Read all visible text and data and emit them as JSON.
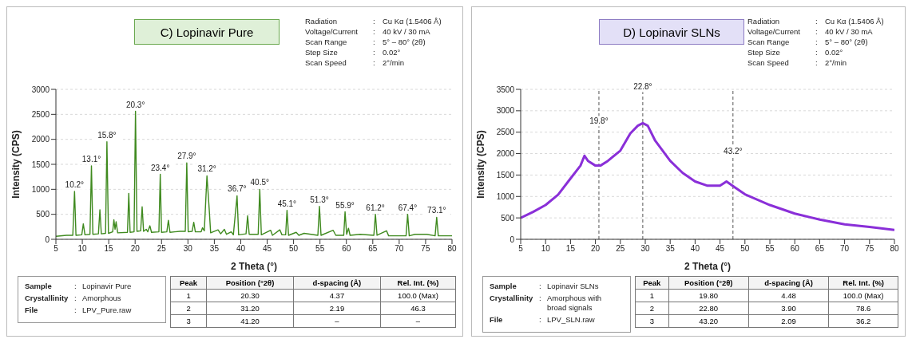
{
  "chart_data": [
    {
      "type": "line",
      "title": "C) Lopinavir Pure",
      "xlabel": "2 Theta (°)",
      "ylabel": "Intensity (CPS)",
      "color": "#3f8a1f",
      "xlim": [
        5,
        80
      ],
      "xticks": [
        5,
        10,
        15,
        20,
        25,
        30,
        35,
        40,
        45,
        50,
        55,
        60,
        65,
        70,
        75,
        80
      ],
      "ylim": [
        0,
        3000
      ],
      "yticks": [
        0,
        500,
        1000,
        1500,
        2000,
        2500,
        3000
      ],
      "grid": "y",
      "x": [
        5,
        7,
        8.2,
        8.53,
        8.8,
        9.9,
        10.19,
        10.5,
        11.45,
        11.73,
        12.0,
        13.05,
        13.33,
        13.6,
        14.4,
        14.66,
        14.95,
        15.75,
        15.98,
        16.2,
        16.4,
        16.7,
        18.55,
        18.8,
        19.05,
        19.8,
        20.07,
        20.35,
        21.05,
        21.33,
        21.6,
        22.1,
        22.4,
        22.8,
        23.1,
        24.5,
        24.76,
        25.0,
        26.0,
        26.3,
        26.6,
        27.5,
        28.5,
        29.5,
        29.78,
        30.05,
        30.8,
        31.1,
        31.4,
        32.5,
        32.76,
        33.1,
        33.6,
        34.03,
        34.3,
        35.7,
        36.2,
        36.9,
        37.3,
        38.2,
        38.6,
        39.3,
        39.6,
        41.0,
        41.3,
        41.6,
        43.3,
        43.6,
        43.9,
        45.67,
        46,
        47.4,
        47.8,
        48.5,
        48.76,
        49.05,
        50.5,
        51,
        52,
        54.6,
        54.9,
        55.2,
        57.5,
        58,
        59.5,
        59.75,
        60.05,
        60.4,
        60.7,
        62.6,
        65.2,
        65.5,
        65.8,
        67.6,
        68,
        71.3,
        71.6,
        71.9,
        73,
        75.2,
        76.8,
        77.1,
        77.4,
        80
      ],
      "values": [
        60,
        80,
        80,
        960,
        80,
        90,
        310,
        90,
        100,
        1470,
        100,
        110,
        590,
        110,
        120,
        1950,
        120,
        150,
        390,
        200,
        350,
        130,
        140,
        920,
        140,
        150,
        2560,
        160,
        170,
        650,
        160,
        200,
        150,
        270,
        140,
        150,
        1300,
        140,
        150,
        380,
        140,
        150,
        160,
        160,
        1530,
        150,
        160,
        340,
        150,
        150,
        230,
        170,
        1270,
        600,
        130,
        190,
        110,
        200,
        100,
        150,
        90,
        870,
        90,
        110,
        470,
        100,
        100,
        1000,
        90,
        180,
        80,
        190,
        90,
        90,
        580,
        80,
        140,
        80,
        120,
        80,
        660,
        80,
        180,
        80,
        80,
        550,
        100,
        220,
        80,
        100,
        80,
        500,
        80,
        170,
        70,
        70,
        500,
        70,
        100,
        100,
        70,
        440,
        70,
        70
      ],
      "annotations": [
        "Radiation : Cu Kα (1.5406 Å)",
        "Voltage/Current : 40 kV / 30 mA",
        "Scan Range : 5° – 80° (2θ)",
        "Step Size : 0.02°",
        "Scan Speed : 2°/min",
        {
          "text": "10.2°",
          "x": 8.53,
          "y": 960
        },
        {
          "text": "13.1°",
          "x": 11.73,
          "y": 1465
        },
        {
          "text": "15.8°",
          "x": 14.66,
          "y": 1945
        },
        {
          "text": "20.3°",
          "x": 20.07,
          "y": 2560
        },
        {
          "text": "23.4°",
          "x": 24.76,
          "y": 1295
        },
        {
          "text": "27.9°",
          "x": 29.78,
          "y": 1525
        },
        {
          "text": "31.2°",
          "x": 33.6,
          "y": 1270
        },
        {
          "text": "36.7°",
          "x": 39.3,
          "y": 870
        },
        {
          "text": "40.5°",
          "x": 43.6,
          "y": 1000
        },
        {
          "text": "45.1°",
          "x": 48.76,
          "y": 575
        },
        {
          "text": "51.3°",
          "x": 54.9,
          "y": 655
        },
        {
          "text": "55.9°",
          "x": 59.75,
          "y": 550
        },
        {
          "text": "61.2°",
          "x": 65.5,
          "y": 495
        },
        {
          "text": "67.4°",
          "x": 71.6,
          "y": 495
        },
        {
          "text": "73.1°",
          "x": 77.1,
          "y": 440
        }
      ]
    },
    {
      "type": "other",
      "annotations": [
        "Sample : Lopinavir Pure",
        "Crystallinity : Amorphous",
        "File : LPV_Pure.raw"
      ]
    },
    {
      "type": "other",
      "categories": [
        "Peak",
        "Position (°2θ)",
        "d-spacing (Å)",
        "Rel. Int. (%)"
      ],
      "cells": [
        [
          "1",
          "20.30",
          "4.37",
          "100.0 (Max)"
        ],
        [
          "2",
          "31.20",
          "2.19",
          "46.3"
        ],
        [
          "3",
          "41.20",
          "–",
          "–"
        ]
      ]
    },
    {
      "type": "line",
      "title": "D) Lopinavir SLNs",
      "xlabel": "2 Theta (°)",
      "ylabel": "Intensity (CPS)",
      "color": "#8a2fd8",
      "xlim": [
        5,
        80
      ],
      "xticks": [
        5,
        10,
        15,
        20,
        25,
        30,
        35,
        40,
        45,
        50,
        55,
        60,
        65,
        70,
        75,
        80
      ],
      "ylim": [
        0,
        3500
      ],
      "yticks": [
        0,
        500,
        1000,
        1500,
        2000,
        2500,
        3000,
        3500
      ],
      "grid": "y",
      "x": [
        5,
        7.5,
        10,
        12.5,
        15,
        17,
        17.8,
        18.5,
        20,
        21,
        22.5,
        25,
        27,
        28.5,
        29.5,
        30.5,
        32,
        35,
        37.5,
        40,
        42.5,
        45,
        46.3,
        48,
        50,
        55,
        60,
        65,
        70,
        75,
        80
      ],
      "values": [
        500,
        640,
        800,
        1040,
        1420,
        1720,
        1950,
        1830,
        1720,
        1720,
        1830,
        2070,
        2470,
        2650,
        2710,
        2650,
        2300,
        1830,
        1550,
        1350,
        1250,
        1250,
        1350,
        1210,
        1050,
        800,
        600,
        460,
        350,
        290,
        220
      ],
      "ref_lines": [
        {
          "axis": "x",
          "value": 20.7,
          "line_style": "dashed",
          "color": "#555555"
        },
        {
          "axis": "x",
          "value": 29.5,
          "line_style": "dashed",
          "color": "#555555"
        },
        {
          "axis": "x",
          "value": 47.6,
          "line_style": "dashed",
          "color": "#555555"
        }
      ],
      "annotations": [
        "Radiation : Cu Kα (1.5406 Å)",
        "Voltage/Current : 40 kV / 30 mA",
        "Scan Range : 5° – 80° (2θ)",
        "Step Size : 0.02°",
        "Scan Speed : 2°/min",
        {
          "text": "19.8°",
          "x": 20.7,
          "y": 2600
        },
        {
          "text": "22.8°",
          "x": 29.5,
          "y": 3400
        },
        {
          "text": "43.2°",
          "x": 47.6,
          "y": 1900
        }
      ]
    },
    {
      "type": "other",
      "annotations": [
        "Sample : Lopinavir SLNs",
        "Crystallinity : Amorphous with broad signals",
        "File : LPV_SLN.raw"
      ]
    },
    {
      "type": "other",
      "categories": [
        "Peak",
        "Position (°2θ)",
        "d-spacing (Å)",
        "Rel. Int. (%)"
      ],
      "cells": [
        [
          "1",
          "19.80",
          "4.48",
          "100.0 (Max)"
        ],
        [
          "2",
          "22.80",
          "3.90",
          "78.6"
        ],
        [
          "3",
          "43.20",
          "2.09",
          "36.2"
        ]
      ]
    }
  ]
}
